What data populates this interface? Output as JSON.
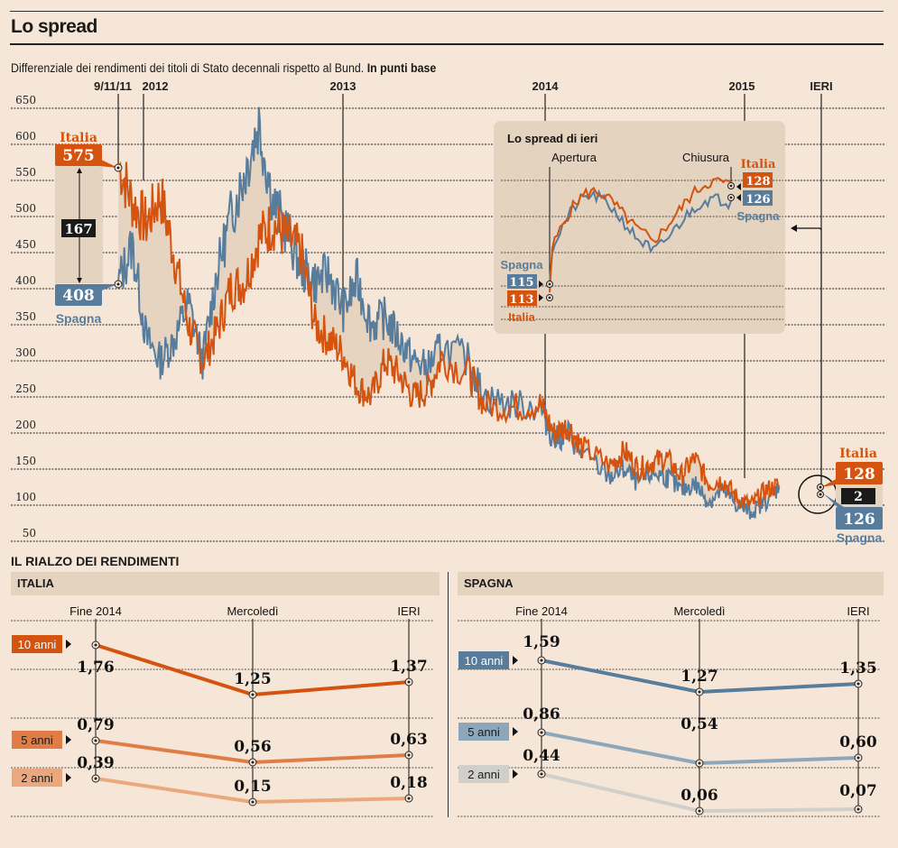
{
  "header": {
    "title": "Lo spread",
    "subtitle": "Differenziale dei rendimenti dei titoli di Stato decennali rispetto al Bund.",
    "subtitle_bold": "In punti base"
  },
  "colors": {
    "italia": "#d4530f",
    "spagna": "#577c9c",
    "fill": "#e6d4c0",
    "background": "#f5e6d7",
    "dark": "#1a1a1a"
  },
  "chart_data": [
    {
      "type": "line",
      "title": "Lo spread",
      "ylabel": "Punti base",
      "ylim": [
        50,
        650
      ],
      "yticks": [
        650,
        600,
        550,
        500,
        450,
        400,
        350,
        300,
        250,
        200,
        150,
        100,
        50
      ],
      "grid": true,
      "time_markers": [
        "9/11/11",
        "2012",
        "2013",
        "2014",
        "2015",
        "IERI"
      ],
      "series": [
        {
          "name": "Italia",
          "approx_points": [
            [
              0,
              575
            ],
            [
              0.02,
              520
            ],
            [
              0.04,
              490
            ],
            [
              0.06,
              530
            ],
            [
              0.08,
              445
            ],
            [
              0.1,
              350
            ],
            [
              0.12,
              300
            ],
            [
              0.14,
              340
            ],
            [
              0.16,
              400
            ],
            [
              0.18,
              410
            ],
            [
              0.2,
              470
            ],
            [
              0.22,
              490
            ],
            [
              0.24,
              470
            ],
            [
              0.26,
              450
            ],
            [
              0.28,
              350
            ],
            [
              0.3,
              330
            ],
            [
              0.32,
              310
            ],
            [
              0.34,
              265
            ],
            [
              0.36,
              250
            ],
            [
              0.38,
              300
            ],
            [
              0.4,
              280
            ],
            [
              0.42,
              250
            ],
            [
              0.44,
              260
            ],
            [
              0.46,
              305
            ],
            [
              0.5,
              280
            ],
            [
              0.52,
              240
            ],
            [
              0.56,
              235
            ],
            [
              0.6,
              240
            ],
            [
              0.62,
              200
            ],
            [
              0.64,
              210
            ],
            [
              0.66,
              180
            ],
            [
              0.7,
              155
            ],
            [
              0.72,
              175
            ],
            [
              0.74,
              150
            ],
            [
              0.76,
              160
            ],
            [
              0.78,
              165
            ],
            [
              0.8,
              140
            ],
            [
              0.82,
              165
            ],
            [
              0.84,
              130
            ],
            [
              0.86,
              135
            ],
            [
              0.88,
              110
            ],
            [
              0.9,
              100
            ],
            [
              0.92,
              120
            ],
            [
              0.94,
              128
            ]
          ],
          "start_label": 575,
          "end_label": 128
        },
        {
          "name": "Spagna",
          "approx_points": [
            [
              0,
              408
            ],
            [
              0.02,
              460
            ],
            [
              0.04,
              330
            ],
            [
              0.06,
              300
            ],
            [
              0.08,
              330
            ],
            [
              0.1,
              380
            ],
            [
              0.12,
              300
            ],
            [
              0.14,
              420
            ],
            [
              0.16,
              500
            ],
            [
              0.18,
              560
            ],
            [
              0.2,
              630
            ],
            [
              0.22,
              520
            ],
            [
              0.24,
              480
            ],
            [
              0.26,
              430
            ],
            [
              0.28,
              410
            ],
            [
              0.3,
              420
            ],
            [
              0.32,
              370
            ],
            [
              0.34,
              410
            ],
            [
              0.36,
              350
            ],
            [
              0.38,
              360
            ],
            [
              0.4,
              330
            ],
            [
              0.42,
              300
            ],
            [
              0.44,
              290
            ],
            [
              0.46,
              320
            ],
            [
              0.5,
              300
            ],
            [
              0.52,
              250
            ],
            [
              0.56,
              240
            ],
            [
              0.6,
              235
            ],
            [
              0.62,
              190
            ],
            [
              0.64,
              200
            ],
            [
              0.66,
              170
            ],
            [
              0.7,
              140
            ],
            [
              0.72,
              150
            ],
            [
              0.74,
              130
            ],
            [
              0.76,
              145
            ],
            [
              0.78,
              140
            ],
            [
              0.8,
              120
            ],
            [
              0.82,
              130
            ],
            [
              0.84,
              105
            ],
            [
              0.86,
              120
            ],
            [
              0.88,
              100
            ],
            [
              0.9,
              90
            ],
            [
              0.92,
              105
            ],
            [
              0.94,
              126
            ]
          ],
          "start_label": 408,
          "end_label": 126
        }
      ],
      "annotations": {
        "start_date": "9/11/11",
        "start_italia": "575",
        "start_spagna": "408",
        "start_diff": "167",
        "end_italia": "128",
        "end_spagna": "126",
        "end_diff": "2",
        "label_italia": "Italia",
        "label_spagna": "Spagna"
      }
    },
    {
      "type": "line",
      "title": "Lo spread di ieri",
      "markers": [
        "Apertura",
        "Chiusura"
      ],
      "series": [
        {
          "name": "Italia",
          "open": 113,
          "close": 128
        },
        {
          "name": "Spagna",
          "open": 115,
          "close": 126
        }
      ]
    },
    {
      "type": "line",
      "title": "ITALIA",
      "categories": [
        "Fine 2014",
        "Mercoledì",
        "IERI"
      ],
      "series": [
        {
          "name": "10 anni",
          "values": [
            1.76,
            1.25,
            1.37
          ],
          "labels": [
            "1,76",
            "1,25",
            "1,37"
          ]
        },
        {
          "name": "5 anni",
          "values": [
            0.79,
            0.56,
            0.63
          ],
          "labels": [
            "0,79",
            "0,56",
            "0,63"
          ]
        },
        {
          "name": "2 anni",
          "values": [
            0.39,
            0.15,
            0.18
          ],
          "labels": [
            "0,39",
            "0,15",
            "0,18"
          ]
        }
      ]
    },
    {
      "type": "line",
      "title": "SPAGNA",
      "categories": [
        "Fine 2014",
        "Mercoledì",
        "IERI"
      ],
      "series": [
        {
          "name": "10 anni",
          "values": [
            1.59,
            1.27,
            1.35
          ],
          "labels": [
            "1,59",
            "1,27",
            "1,35"
          ]
        },
        {
          "name": "5 anni",
          "values": [
            0.86,
            0.54,
            0.6
          ],
          "labels": [
            "0,86",
            "0,54",
            "0,60"
          ]
        },
        {
          "name": "2 anni",
          "values": [
            0.44,
            0.06,
            0.07
          ],
          "labels": [
            "0,44",
            "0,06",
            "0,07"
          ]
        }
      ]
    }
  ],
  "inset": {
    "title": "Lo spread di ieri",
    "open_label": "Apertura",
    "close_label": "Chiusura",
    "italia_open": "113",
    "spagna_open": "115",
    "italia_close": "128",
    "spagna_close": "126",
    "label_italia": "Italia",
    "label_spagna": "Spagna"
  },
  "yields": {
    "section_title": "IL RIALZO DEI RENDIMENTI",
    "italia_title": "ITALIA",
    "spagna_title": "SPAGNA",
    "series_colors_italia": [
      "#d4530f",
      "#e07c45",
      "#eaa87e"
    ],
    "series_colors_spagna": [
      "#577c9c",
      "#8ea6ba",
      "#d0cfcb"
    ]
  }
}
